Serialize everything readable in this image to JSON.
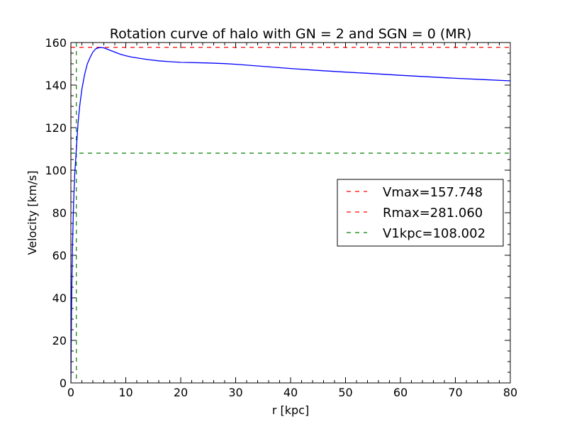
{
  "chart_data": {
    "type": "line",
    "title": "Rotation curve of halo with GN = 2 and SGN = 0 (MR)",
    "xlabel": "r [kpc]",
    "ylabel": "Velocity [km/s]",
    "xlim": [
      0,
      80
    ],
    "ylim": [
      0,
      160
    ],
    "xticks": [
      0,
      10,
      20,
      30,
      40,
      50,
      60,
      70,
      80
    ],
    "yticks": [
      0,
      20,
      40,
      60,
      80,
      100,
      120,
      140,
      160
    ],
    "grid": false,
    "legend_position": "right",
    "series": [
      {
        "color": "#0000ff",
        "x": [
          0,
          0.1,
          0.2,
          0.3,
          0.5,
          0.7,
          1.0,
          1.3,
          1.6,
          2.0,
          2.5,
          3.0,
          3.5,
          4.0,
          4.5,
          5.0,
          5.5,
          6.0,
          6.5,
          7.0,
          8.0,
          9.0,
          10.0,
          11.0,
          12.0,
          14.0,
          16.0,
          18.0,
          20.0,
          25.0,
          28.0,
          30.0,
          35.0,
          40.0,
          45.0,
          50.0,
          55.0,
          60.0,
          65.0,
          70.0,
          75.0,
          80.0
        ],
        "y": [
          0,
          30,
          50,
          65,
          85,
          98,
          110,
          122,
          130,
          138,
          145,
          150,
          153,
          155.5,
          157,
          157.5,
          157.7,
          157.5,
          157,
          156.5,
          155.5,
          154.5,
          153.8,
          153.2,
          152.8,
          152,
          151.4,
          151,
          150.7,
          150.4,
          150.1,
          149.8,
          148.8,
          147.8,
          146.9,
          146.1,
          145.4,
          144.6,
          143.9,
          143.2,
          142.6,
          142.0
        ]
      }
    ],
    "hlines": [
      {
        "value": 157.748,
        "color": "#ff0000",
        "style": "dashed"
      },
      {
        "value": 108.002,
        "color": "#008000",
        "style": "dashed"
      }
    ],
    "vlines": [
      {
        "value": 0,
        "color": "#ff0000",
        "style": "dashed"
      },
      {
        "value": 1.0,
        "color": "#008000",
        "style": "dashed"
      }
    ],
    "legend": [
      {
        "label": "Vmax=157.748",
        "color": "#ff0000",
        "style": "dashed"
      },
      {
        "label": "Rmax=281.060",
        "color": "#ff0000",
        "style": "dashed"
      },
      {
        "label": "V1kpc=108.002",
        "color": "#008000",
        "style": "dashed"
      }
    ]
  }
}
